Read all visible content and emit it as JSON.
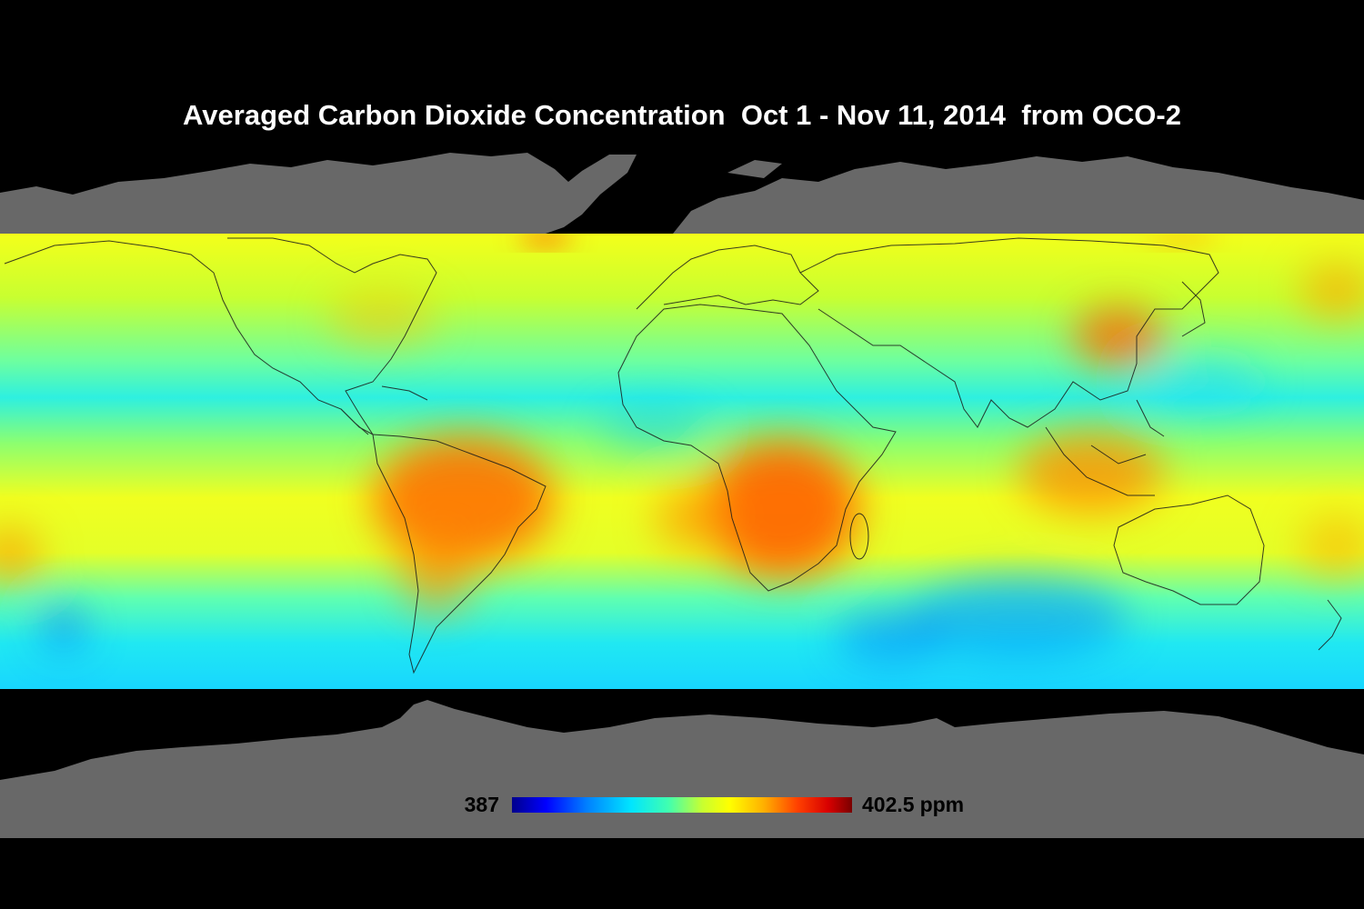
{
  "map": {
    "title": "Averaged Carbon Dioxide Concentration  Oct 1 - Nov 11, 2014  from OCO-2",
    "colorbar": {
      "min_label": "387",
      "max_label": "402.5",
      "unit": "ppm",
      "min_value": 387,
      "max_value": 402.5,
      "colors": [
        "#00008c",
        "#0000ff",
        "#0080ff",
        "#00e5ff",
        "#40ffb0",
        "#c8ff30",
        "#ffff00",
        "#ffb000",
        "#ff4000",
        "#d80000",
        "#7a0000"
      ]
    },
    "colors": {
      "background": "#000000",
      "landmass_no_data": "#686868",
      "low_co2": "#00c8ff",
      "mid_co2": "#f0ff20",
      "high_co2": "#ff5a00",
      "coastline": "#1a1a1a"
    },
    "hotspots": [
      {
        "region": "Amazon / South America",
        "level": "high"
      },
      {
        "region": "Southern Africa",
        "level": "high"
      },
      {
        "region": "Eastern China",
        "level": "high"
      },
      {
        "region": "Indonesia",
        "level": "high"
      },
      {
        "region": "Southern Ocean",
        "level": "low"
      }
    ]
  }
}
